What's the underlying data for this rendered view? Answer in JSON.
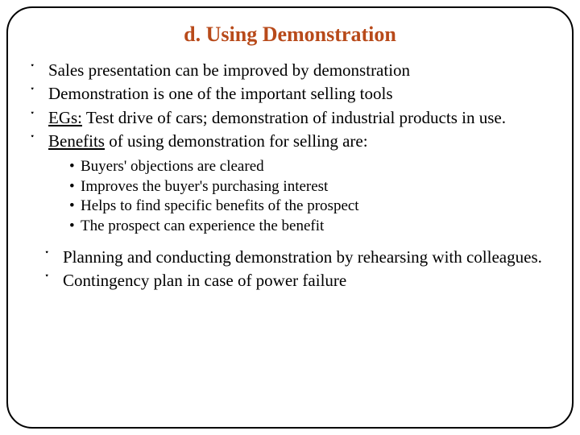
{
  "colors": {
    "title_color": "#b84a1a",
    "text_color": "#000000",
    "border_color": "#000000",
    "bg_color": "#ffffff"
  },
  "title": "d. Using Demonstration",
  "bullets": [
    {
      "prefix": "",
      "text": "Sales presentation can be improved by demonstration"
    },
    {
      "prefix": "",
      "text": "Demonstration is one of the important selling tools"
    },
    {
      "prefix": "EGs:",
      "text": " Test drive of cars; demonstration of industrial products in use."
    },
    {
      "prefix": "",
      "text": "Benefits of using demonstration for selling are:",
      "label": "Benefits"
    }
  ],
  "sub_bullets": [
    "Buyers' objections are cleared",
    "Improves the buyer's purchasing interest",
    "Helps to find specific benefits of the prospect",
    "The prospect can experience the benefit"
  ],
  "lower_bullets": [
    "Planning and conducting demonstration by rehearsing with colleagues.",
    "Contingency plan in case of power failure"
  ],
  "decor_glyph": "་",
  "sub_glyph": "•"
}
